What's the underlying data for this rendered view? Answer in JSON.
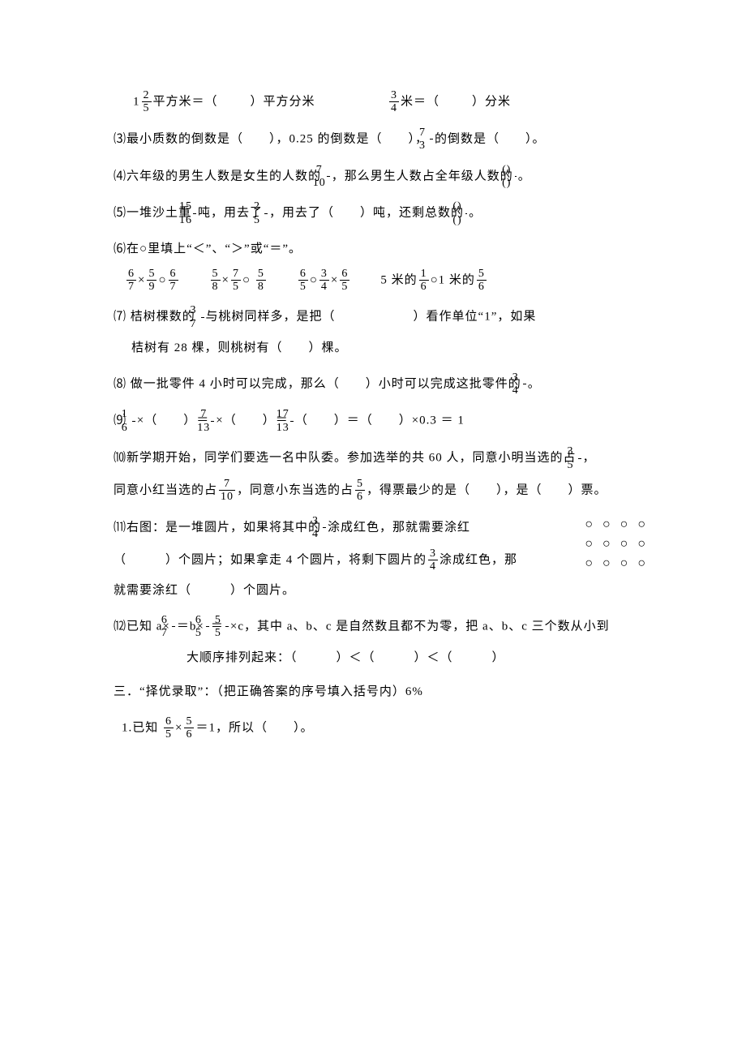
{
  "colors": {
    "text": "#000000",
    "background": "#ffffff"
  },
  "typography": {
    "fontFamily": "SimSun",
    "fontSize": 15,
    "lineHeight": 1.9
  },
  "q2": {
    "a_whole": "1",
    "a_num": "2",
    "a_den": "5",
    "a_text_before": "平方米＝（",
    "a_text_after": "）平方分米",
    "b_num": "3",
    "b_den": "4",
    "b_text_before": "米＝（",
    "b_text_after": "）分米"
  },
  "q3": {
    "label": "⑶",
    "p1": "最小质数的倒数是（　　），0.25 的倒数是（　　），",
    "f_num": "7",
    "f_den": "3",
    "p2": "的倒数是（　　）。"
  },
  "q4": {
    "label": "⑷",
    "p1": "六年级的男生人数是女生的人数的 ",
    "f1_num": "7",
    "f1_den": "10",
    "p2": "，那么男生人数占全年级人数的",
    "f2_num": "()",
    "f2_den": "()",
    "p3": "。"
  },
  "q5": {
    "label": "⑸",
    "p1": "一堆沙土重",
    "f1_num": "15",
    "f1_den": "16",
    "p2": "吨，用去了",
    "f2_num": "2",
    "f2_den": "5",
    "p3": "，用去了（　　）吨，还剩总数的",
    "f3_num": "()",
    "f3_den": "()",
    "p4": "。"
  },
  "q6": {
    "label": "⑹",
    "head": "在○里填上“＜”、“＞”或“＝”。",
    "items": [
      {
        "parts": [
          {
            "n": "6",
            "d": "7"
          },
          "×",
          {
            "n": "5",
            "d": "9"
          },
          "○",
          {
            "n": "6",
            "d": "7"
          }
        ]
      },
      {
        "parts": [
          {
            "n": "5",
            "d": "8"
          },
          "×",
          {
            "n": "7",
            "d": "5"
          },
          "○ ",
          {
            "n": "5",
            "d": "8"
          }
        ]
      },
      {
        "parts": [
          {
            "n": "6",
            "d": "5"
          },
          "○",
          {
            "n": "3",
            "d": "4"
          },
          "×",
          {
            "n": "6",
            "d": "5"
          }
        ]
      },
      {
        "parts": [
          "5 米的",
          {
            "n": "1",
            "d": "6"
          },
          "○1 米的",
          {
            "n": "5",
            "d": "6"
          }
        ]
      }
    ]
  },
  "q7": {
    "label": "⑺",
    "p1": " 桔树棵数的 ",
    "f_num": "3",
    "f_den": "7",
    "p2": "与桃树同样多，是把（　　　　　　）看作单位“1”，如果",
    "p3": "桔树有 28 棵，则桃树有（　　）棵。"
  },
  "q8": {
    "label": "⑻",
    "p1": " 做一批零件 4 小时可以完成，那么（　　）小时可以完成这批零件的",
    "f_num": "3",
    "f_den": "4",
    "p2": "。"
  },
  "q9": {
    "label": "⑼",
    "f1_num": "1",
    "f1_den": "6",
    "p1": "×（　　）＝",
    "f2_num": "7",
    "f2_den": "13",
    "p2": "×（　　）＝",
    "f3_num": "17",
    "f3_den": "13",
    "p3": "（　　）＝（　　）×0.3 ＝ 1"
  },
  "q10": {
    "label": "⑽",
    "p1": "新学期开始，同学们要选一名中队委。参加选举的共 60 人，同意小明当选的占",
    "f1_num": "3",
    "f1_den": "5",
    "p2": "，",
    "p3": "同意小红当选的占",
    "f2_num": "7",
    "f2_den": "10",
    "p4": "，同意小东当选的占",
    "f3_num": "5",
    "f3_den": "6",
    "p5": "，得票最少的是（　　），是（　　）票。"
  },
  "q11": {
    "label": "⑾",
    "p1": "右图：是一堆圆片，如果将其中的",
    "f1_num": "3",
    "f1_den": "4",
    "p2": "涂成红色，那就需要涂红",
    "p3": "（　　　）个圆片；如果拿走 4 个圆片，将剩下圆片的",
    "f2_num": "3",
    "f2_den": "4",
    "p4": "涂成红色，那",
    "p5": "就需要涂红（　　　）个圆片。",
    "circles": {
      "rows": 3,
      "cols": 4,
      "glyph": "○"
    }
  },
  "q12": {
    "label": "⑿",
    "p1": "已知 a×",
    "f1_num": "6",
    "f1_den": "7",
    "p2": "＝b×",
    "f2_num": "6",
    "f2_den": "5",
    "p3": "＝",
    "f3_num": "5",
    "f3_den": "5",
    "p4": "×c，其中 a、b、c 是自然数且都不为零，把 a、b、c 三个数从小到",
    "p5": "大顺序排列起来：（　　　）＜（　　　）＜（　　　）"
  },
  "section3": {
    "head": "三．“择优录取”：（把正确答案的序号填入括号内）6%",
    "q1_label": "1.",
    "q1_p1": "已知 ",
    "q1_f1_num": "6",
    "q1_f1_den": "5",
    "q1_mid": "×",
    "q1_f2_num": "5",
    "q1_f2_den": "6",
    "q1_p2": "＝1，所以（　　）。"
  }
}
